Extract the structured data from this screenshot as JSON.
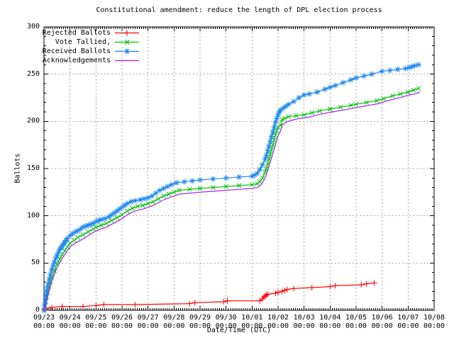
{
  "page": {
    "background": "#ffffff"
  },
  "chart_data": {
    "type": "line",
    "title": "Constitutional amendment: reduce the length of DPL election process",
    "xlabel": "Date/Time (UTC)",
    "ylabel": "Ballots",
    "grid": true,
    "grid_color": "#a8a8a8",
    "border_color": "#000000",
    "legend_position": "top-left",
    "x_axis": {
      "unit": "days since 09/23 00:00 UTC",
      "range_days": [
        0,
        15
      ],
      "tick_labels": [
        "09/23",
        "09/24",
        "09/25",
        "09/26",
        "09/27",
        "09/28",
        "09/29",
        "09/30",
        "10/01",
        "10/02",
        "10/03",
        "10/04",
        "10/05",
        "10/06",
        "10/07",
        "10/08"
      ],
      "tick_sublabel": "00:00",
      "minor_tick_hours": 2
    },
    "y_axis": {
      "range": [
        0,
        300
      ],
      "ticks": [
        0,
        50,
        100,
        150,
        200,
        250,
        300
      ],
      "minor_tick": 10
    },
    "series": [
      {
        "name": "Rejected Ballots",
        "color": "#ff0000",
        "marker": "plus",
        "points": [
          [
            0,
            0
          ],
          [
            0.03,
            1
          ],
          [
            0.08,
            2
          ],
          [
            0.3,
            3
          ],
          [
            0.7,
            4
          ],
          [
            1.5,
            4
          ],
          [
            2,
            5
          ],
          [
            2.3,
            6
          ],
          [
            3.5,
            6
          ],
          [
            5.6,
            7
          ],
          [
            5.8,
            8
          ],
          [
            6.9,
            9
          ],
          [
            7.05,
            10
          ],
          [
            8.3,
            10
          ],
          [
            8.4,
            12
          ],
          [
            8.45,
            14
          ],
          [
            8.5,
            15
          ],
          [
            8.55,
            16
          ],
          [
            8.6,
            17
          ],
          [
            8.9,
            18
          ],
          [
            9,
            19
          ],
          [
            9.15,
            20
          ],
          [
            9.25,
            21
          ],
          [
            9.35,
            22
          ],
          [
            9.6,
            23
          ],
          [
            10.3,
            24
          ],
          [
            11,
            25
          ],
          [
            11.2,
            26
          ],
          [
            12.2,
            27
          ],
          [
            12.4,
            28
          ],
          [
            12.7,
            29
          ]
        ]
      },
      {
        "name": "Vote Tallied,",
        "color": "#00c000",
        "marker": "cross",
        "points": [
          [
            0,
            0
          ],
          [
            0.03,
            4
          ],
          [
            0.06,
            9
          ],
          [
            0.1,
            14
          ],
          [
            0.15,
            19
          ],
          [
            0.2,
            25
          ],
          [
            0.25,
            30
          ],
          [
            0.3,
            35
          ],
          [
            0.4,
            42
          ],
          [
            0.5,
            49
          ],
          [
            0.6,
            54
          ],
          [
            0.7,
            59
          ],
          [
            0.8,
            63
          ],
          [
            0.9,
            67
          ],
          [
            1,
            71
          ],
          [
            1.15,
            74
          ],
          [
            1.3,
            77
          ],
          [
            1.5,
            80
          ],
          [
            1.7,
            83
          ],
          [
            1.9,
            86
          ],
          [
            2,
            88
          ],
          [
            2.2,
            90
          ],
          [
            2.4,
            92
          ],
          [
            2.6,
            95
          ],
          [
            2.8,
            98
          ],
          [
            3,
            101
          ],
          [
            3.2,
            105
          ],
          [
            3.4,
            108
          ],
          [
            3.6,
            110
          ],
          [
            3.8,
            111
          ],
          [
            4,
            113
          ],
          [
            4.2,
            115
          ],
          [
            4.4,
            118
          ],
          [
            4.6,
            121
          ],
          [
            4.8,
            123
          ],
          [
            5,
            125
          ],
          [
            5.2,
            127
          ],
          [
            5.6,
            128
          ],
          [
            6,
            129
          ],
          [
            6.5,
            130
          ],
          [
            7,
            131
          ],
          [
            7.5,
            132
          ],
          [
            8,
            133
          ],
          [
            8.2,
            134
          ],
          [
            8.3,
            136
          ],
          [
            8.4,
            140
          ],
          [
            8.5,
            146
          ],
          [
            8.55,
            150
          ],
          [
            8.6,
            155
          ],
          [
            8.65,
            160
          ],
          [
            8.7,
            165
          ],
          [
            8.75,
            170
          ],
          [
            8.8,
            175
          ],
          [
            8.85,
            180
          ],
          [
            8.9,
            185
          ],
          [
            8.95,
            190
          ],
          [
            9,
            194
          ],
          [
            9.1,
            196
          ],
          [
            9.15,
            202
          ],
          [
            9.25,
            203
          ],
          [
            9.4,
            205
          ],
          [
            9.7,
            206
          ],
          [
            10,
            207
          ],
          [
            10.3,
            209
          ],
          [
            10.6,
            211
          ],
          [
            11,
            213
          ],
          [
            11.4,
            215
          ],
          [
            11.8,
            217
          ],
          [
            12,
            218
          ],
          [
            12.4,
            220
          ],
          [
            12.8,
            222
          ],
          [
            13.05,
            224
          ],
          [
            13.4,
            227
          ],
          [
            13.7,
            229
          ],
          [
            14,
            231
          ],
          [
            14.2,
            233
          ],
          [
            14.4,
            235
          ]
        ]
      },
      {
        "name": "Received Ballots",
        "color": "#1c86ee",
        "marker": "star",
        "points": [
          [
            0,
            0
          ],
          [
            0.02,
            4
          ],
          [
            0.04,
            8
          ],
          [
            0.06,
            12
          ],
          [
            0.08,
            16
          ],
          [
            0.1,
            20
          ],
          [
            0.13,
            24
          ],
          [
            0.16,
            28
          ],
          [
            0.2,
            33
          ],
          [
            0.25,
            38
          ],
          [
            0.3,
            43
          ],
          [
            0.35,
            47
          ],
          [
            0.4,
            51
          ],
          [
            0.45,
            55
          ],
          [
            0.5,
            58
          ],
          [
            0.55,
            61
          ],
          [
            0.6,
            64
          ],
          [
            0.65,
            66
          ],
          [
            0.7,
            68
          ],
          [
            0.75,
            70
          ],
          [
            0.8,
            72
          ],
          [
            0.85,
            74
          ],
          [
            0.9,
            76
          ],
          [
            1,
            79
          ],
          [
            1.1,
            81
          ],
          [
            1.2,
            83
          ],
          [
            1.3,
            84
          ],
          [
            1.4,
            86
          ],
          [
            1.5,
            88
          ],
          [
            1.6,
            89
          ],
          [
            1.7,
            90
          ],
          [
            1.8,
            91
          ],
          [
            1.9,
            92
          ],
          [
            2,
            94
          ],
          [
            2.1,
            95
          ],
          [
            2.2,
            96
          ],
          [
            2.35,
            97
          ],
          [
            2.5,
            99
          ],
          [
            2.6,
            101
          ],
          [
            2.7,
            103
          ],
          [
            2.8,
            105
          ],
          [
            2.9,
            107
          ],
          [
            3,
            109
          ],
          [
            3.1,
            111
          ],
          [
            3.2,
            113
          ],
          [
            3.35,
            115
          ],
          [
            3.5,
            116
          ],
          [
            3.7,
            117
          ],
          [
            3.85,
            118
          ],
          [
            4,
            119
          ],
          [
            4.15,
            121
          ],
          [
            4.3,
            124
          ],
          [
            4.45,
            127
          ],
          [
            4.6,
            129
          ],
          [
            4.75,
            131
          ],
          [
            4.9,
            133
          ],
          [
            5.1,
            135
          ],
          [
            5.4,
            136
          ],
          [
            5.7,
            137
          ],
          [
            6,
            138
          ],
          [
            6.5,
            139
          ],
          [
            7,
            140
          ],
          [
            7.5,
            141
          ],
          [
            8,
            142
          ],
          [
            8.1,
            143
          ],
          [
            8.2,
            145
          ],
          [
            8.3,
            149
          ],
          [
            8.4,
            154
          ],
          [
            8.5,
            160
          ],
          [
            8.55,
            164
          ],
          [
            8.6,
            169
          ],
          [
            8.65,
            174
          ],
          [
            8.7,
            179
          ],
          [
            8.75,
            184
          ],
          [
            8.8,
            189
          ],
          [
            8.85,
            194
          ],
          [
            8.9,
            199
          ],
          [
            8.95,
            203
          ],
          [
            9,
            207
          ],
          [
            9.05,
            210
          ],
          [
            9.1,
            212
          ],
          [
            9.2,
            214
          ],
          [
            9.3,
            216
          ],
          [
            9.4,
            218
          ],
          [
            9.6,
            221
          ],
          [
            9.8,
            225
          ],
          [
            10,
            228
          ],
          [
            10.2,
            229
          ],
          [
            10.5,
            231
          ],
          [
            10.8,
            234
          ],
          [
            11,
            236
          ],
          [
            11.2,
            238
          ],
          [
            11.5,
            241
          ],
          [
            11.8,
            244
          ],
          [
            12,
            246
          ],
          [
            12.3,
            248
          ],
          [
            12.6,
            250
          ],
          [
            13,
            253
          ],
          [
            13.3,
            254
          ],
          [
            13.6,
            255
          ],
          [
            13.9,
            256
          ],
          [
            14.05,
            257
          ],
          [
            14.15,
            258
          ],
          [
            14.25,
            259
          ],
          [
            14.4,
            260
          ]
        ]
      },
      {
        "name": "Acknowledgements",
        "color": "#a020f0",
        "marker": "none",
        "points": [
          [
            0,
            0
          ],
          [
            0.05,
            5
          ],
          [
            0.1,
            11
          ],
          [
            0.15,
            16
          ],
          [
            0.2,
            21
          ],
          [
            0.25,
            26
          ],
          [
            0.3,
            31
          ],
          [
            0.4,
            38
          ],
          [
            0.5,
            45
          ],
          [
            0.6,
            50
          ],
          [
            0.7,
            55
          ],
          [
            0.8,
            59
          ],
          [
            0.9,
            63
          ],
          [
            1,
            67
          ],
          [
            1.2,
            71
          ],
          [
            1.4,
            74
          ],
          [
            1.6,
            77
          ],
          [
            1.8,
            81
          ],
          [
            2,
            84
          ],
          [
            2.2,
            86
          ],
          [
            2.4,
            88
          ],
          [
            2.6,
            91
          ],
          [
            2.8,
            94
          ],
          [
            3,
            97
          ],
          [
            3.2,
            101
          ],
          [
            3.4,
            104
          ],
          [
            3.6,
            106
          ],
          [
            3.8,
            107
          ],
          [
            4,
            109
          ],
          [
            4.2,
            111
          ],
          [
            4.4,
            114
          ],
          [
            4.6,
            117
          ],
          [
            4.8,
            119
          ],
          [
            5,
            121
          ],
          [
            5.2,
            123
          ],
          [
            5.6,
            124
          ],
          [
            6,
            125
          ],
          [
            6.5,
            126
          ],
          [
            7,
            127
          ],
          [
            7.5,
            128
          ],
          [
            8,
            129
          ],
          [
            8.2,
            130
          ],
          [
            8.35,
            133
          ],
          [
            8.5,
            140
          ],
          [
            8.6,
            148
          ],
          [
            8.7,
            157
          ],
          [
            8.8,
            166
          ],
          [
            8.9,
            175
          ],
          [
            9,
            185
          ],
          [
            9.1,
            190
          ],
          [
            9.15,
            196
          ],
          [
            9.3,
            199
          ],
          [
            9.5,
            201
          ],
          [
            9.8,
            203
          ],
          [
            10.1,
            204
          ],
          [
            10.4,
            206
          ],
          [
            10.7,
            208
          ],
          [
            11.1,
            210
          ],
          [
            11.5,
            212
          ],
          [
            11.9,
            214
          ],
          [
            12.1,
            215
          ],
          [
            12.5,
            217
          ],
          [
            12.9,
            219
          ],
          [
            13.1,
            221
          ],
          [
            13.5,
            224
          ],
          [
            13.8,
            226
          ],
          [
            14.05,
            228
          ],
          [
            14.25,
            229
          ],
          [
            14.45,
            231
          ]
        ]
      }
    ]
  }
}
